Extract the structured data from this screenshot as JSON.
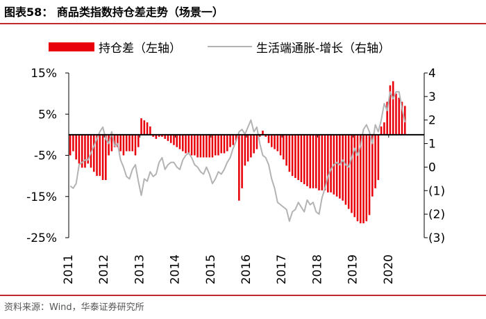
{
  "title": "图表58：  商品类指数持仓差走势（场景一）",
  "source": "资料来源：Wind，华泰证券研究所",
  "colors": {
    "bar": "#e8000b",
    "line": "#b3b3b3",
    "accent": "#c0282d"
  },
  "chart_data": {
    "type": "bar",
    "title": "图表58：  商品类指数持仓差走势（场景一）",
    "x_ticks": [
      "2011",
      "2012",
      "2013",
      "2014",
      "2015",
      "2016",
      "2017",
      "2018",
      "2019",
      "2020"
    ],
    "y_left": {
      "ticks": [
        "15%",
        "5%",
        "-5%",
        "-15%",
        "-25%"
      ],
      "range": [
        -25,
        15
      ],
      "unit": "%"
    },
    "y_right": {
      "ticks": [
        "4",
        "3",
        "2",
        "1",
        "0",
        "(1)",
        "(2)",
        "(3)"
      ],
      "range": [
        -3,
        4
      ]
    },
    "grid": false,
    "legend_position": "top",
    "series": [
      {
        "name": "持仓差（左轴）",
        "type": "bar",
        "axis": "left",
        "x": [
          "2011-01",
          "2011-02",
          "2011-03",
          "2011-04",
          "2011-05",
          "2011-06",
          "2011-07",
          "2011-08",
          "2011-09",
          "2011-10",
          "2011-11",
          "2011-12",
          "2012-01",
          "2012-02",
          "2012-03",
          "2012-04",
          "2012-05",
          "2012-06",
          "2012-07",
          "2012-08",
          "2012-09",
          "2012-10",
          "2012-11",
          "2012-12",
          "2013-01",
          "2013-02",
          "2013-03",
          "2013-04",
          "2013-05",
          "2013-06",
          "2013-07",
          "2013-08",
          "2013-09",
          "2013-10",
          "2013-11",
          "2013-12",
          "2014-01",
          "2014-02",
          "2014-03",
          "2014-04",
          "2014-05",
          "2014-06",
          "2014-07",
          "2014-08",
          "2014-09",
          "2014-10",
          "2014-11",
          "2014-12",
          "2015-01",
          "2015-02",
          "2015-03",
          "2015-04",
          "2015-05",
          "2015-06",
          "2015-07",
          "2015-08",
          "2015-09",
          "2015-10",
          "2015-11",
          "2015-12",
          "2016-01",
          "2016-02",
          "2016-03",
          "2016-04",
          "2016-05",
          "2016-06",
          "2016-07",
          "2016-08",
          "2016-09",
          "2016-10",
          "2016-11",
          "2016-12",
          "2017-01",
          "2017-02",
          "2017-03",
          "2017-04",
          "2017-05",
          "2017-06",
          "2017-07",
          "2017-08",
          "2017-09",
          "2017-10",
          "2017-11",
          "2017-12",
          "2018-01",
          "2018-02",
          "2018-03",
          "2018-04",
          "2018-05",
          "2018-06",
          "2018-07",
          "2018-08",
          "2018-09",
          "2018-10",
          "2018-11",
          "2018-12",
          "2019-01",
          "2019-02",
          "2019-03",
          "2019-04",
          "2019-05",
          "2019-06",
          "2019-07",
          "2019-08",
          "2019-09",
          "2019-10",
          "2019-11",
          "2019-12",
          "2020-01",
          "2020-02",
          "2020-03",
          "2020-04",
          "2020-05",
          "2020-06"
        ],
        "values": [
          -5,
          -4,
          -6,
          -7,
          -8,
          -8,
          -7,
          -8,
          -9,
          -10,
          -10,
          -11,
          -11,
          -5,
          -4,
          -3,
          -3,
          -4,
          -5,
          -4,
          -4,
          -4,
          -5,
          -3,
          4,
          3.5,
          3,
          2,
          -0.5,
          -1,
          -0.5,
          -0.5,
          -1,
          -1.5,
          -2,
          -2.5,
          -3,
          -3.5,
          -4,
          -4.5,
          -4.5,
          -5,
          -5,
          -5.5,
          -5.5,
          -5.5,
          -5.5,
          -5.5,
          -5.5,
          -5,
          -5,
          -4.5,
          -4.5,
          -4,
          -3,
          -2.5,
          -1.5,
          -16,
          -13,
          -7.5,
          -6.5,
          -5.5,
          -4.5,
          -3.5,
          -0.5,
          1,
          -0.5,
          -2,
          -3,
          -3.5,
          -4,
          -5,
          -6,
          -7.5,
          -9,
          -10,
          -10.5,
          -11,
          -11.5,
          -12,
          -12.5,
          -13,
          -13,
          -13,
          -13.5,
          -13.5,
          -13.5,
          -14,
          -14,
          -14.5,
          -15,
          -15.5,
          -16,
          -17,
          -18,
          -19,
          -20,
          -21,
          -21.5,
          -21.5,
          -21,
          -19.5,
          -15,
          -13,
          -11,
          2,
          3,
          8,
          12,
          13,
          10,
          9,
          8,
          7
        ],
        "color": "#e8000b"
      },
      {
        "name": "生活端通胀-增长（右轴）",
        "type": "line",
        "axis": "right",
        "x": [
          "2011-01",
          "2011-02",
          "2011-03",
          "2011-04",
          "2011-05",
          "2011-06",
          "2011-07",
          "2011-08",
          "2011-09",
          "2011-10",
          "2011-11",
          "2011-12",
          "2012-01",
          "2012-02",
          "2012-03",
          "2012-04",
          "2012-05",
          "2012-06",
          "2012-07",
          "2012-08",
          "2012-09",
          "2012-10",
          "2012-11",
          "2012-12",
          "2013-01",
          "2013-02",
          "2013-03",
          "2013-04",
          "2013-05",
          "2013-06",
          "2013-07",
          "2013-08",
          "2013-09",
          "2013-10",
          "2013-11",
          "2013-12",
          "2014-01",
          "2014-02",
          "2014-03",
          "2014-04",
          "2014-05",
          "2014-06",
          "2014-07",
          "2014-08",
          "2014-09",
          "2014-10",
          "2014-11",
          "2014-12",
          "2015-01",
          "2015-02",
          "2015-03",
          "2015-04",
          "2015-05",
          "2015-06",
          "2015-07",
          "2015-08",
          "2015-09",
          "2015-10",
          "2015-11",
          "2015-12",
          "2016-01",
          "2016-02",
          "2016-03",
          "2016-04",
          "2016-05",
          "2016-06",
          "2016-07",
          "2016-08",
          "2016-09",
          "2016-10",
          "2016-11",
          "2016-12",
          "2017-01",
          "2017-02",
          "2017-03",
          "2017-04",
          "2017-05",
          "2017-06",
          "2017-07",
          "2017-08",
          "2017-09",
          "2017-10",
          "2017-11",
          "2017-12",
          "2018-01",
          "2018-02",
          "2018-03",
          "2018-04",
          "2018-05",
          "2018-06",
          "2018-07",
          "2018-08",
          "2018-09",
          "2018-10",
          "2018-11",
          "2018-12",
          "2019-01",
          "2019-02",
          "2019-03",
          "2019-04",
          "2019-05",
          "2019-06",
          "2019-07",
          "2019-08",
          "2019-09",
          "2019-10",
          "2019-11",
          "2019-12",
          "2020-01",
          "2020-02",
          "2020-03",
          "2020-04",
          "2020-05",
          "2020-06"
        ],
        "values": [
          -0.8,
          -0.9,
          -0.7,
          0.1,
          0.2,
          0.3,
          0.3,
          0.6,
          0.9,
          1.2,
          1.5,
          1.7,
          1.2,
          1.0,
          1.5,
          0.9,
          1.0,
          0.3,
          0.0,
          -0.4,
          -0.5,
          -0.1,
          0.1,
          -0.6,
          -1.2,
          -0.5,
          -0.6,
          -0.2,
          -0.4,
          -0.3,
          0.2,
          0.4,
          -0.1,
          0.1,
          0.2,
          0.2,
          0.0,
          -0.1,
          0.3,
          0.5,
          0.6,
          0.4,
          0.1,
          0.0,
          -0.2,
          -0.3,
          0.0,
          -0.3,
          -0.7,
          -0.5,
          -0.2,
          -0.3,
          -0.1,
          0.2,
          0.4,
          0.8,
          1.1,
          1.5,
          1.6,
          1.4,
          1.7,
          2.0,
          1.5,
          1.7,
          1.0,
          0.5,
          0.4,
          0.1,
          -0.5,
          -0.9,
          -1.5,
          -1.6,
          -1.7,
          -1.8,
          -2.3,
          -1.9,
          -1.8,
          -1.5,
          -1.7,
          -1.9,
          -1.4,
          -1.6,
          -1.5,
          -1.9,
          -2.0,
          -1.3,
          -0.9,
          -0.4,
          -0.1,
          0.1,
          0.2,
          0.1,
          0.3,
          0.1,
          0.0,
          0.4,
          0.8,
          0.5,
          0.9,
          1.6,
          1.8,
          1.5,
          1.0,
          1.8,
          1.5,
          2.0,
          2.7,
          2.4,
          3.2,
          2.9,
          3.2,
          3.2,
          2.5,
          1.9
        ]
      }
    ]
  }
}
